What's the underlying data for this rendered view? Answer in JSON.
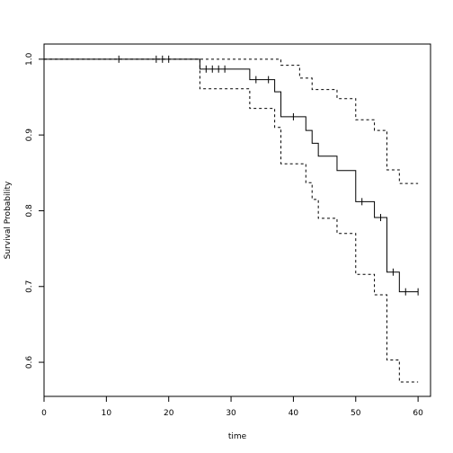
{
  "chart_data": {
    "type": "line",
    "title": "",
    "xlabel": "time",
    "ylabel": "Survival Probability",
    "xlim": [
      0,
      62
    ],
    "ylim": [
      0.555,
      1.02
    ],
    "xticks": [
      0,
      10,
      20,
      30,
      40,
      50,
      60
    ],
    "yticks": [
      0.6,
      0.7,
      0.8,
      0.9,
      1.0
    ],
    "xtick_labels": [
      "0",
      "10",
      "20",
      "30",
      "40",
      "50",
      "60"
    ],
    "ytick_labels": [
      "0.6",
      "0.7",
      "0.8",
      "0.9",
      "1.0"
    ],
    "grid": false,
    "series": [
      {
        "role": "estimate",
        "style": "solid",
        "step_x": [
          0,
          25,
          33,
          37,
          38,
          42,
          43,
          44,
          47,
          50,
          53,
          55,
          57,
          60
        ],
        "step_y": [
          1.0,
          0.987,
          0.973,
          0.957,
          0.924,
          0.906,
          0.889,
          0.872,
          0.853,
          0.812,
          0.791,
          0.719,
          0.693,
          0.693
        ],
        "censor_x": [
          12,
          18,
          19,
          20,
          26,
          27,
          28,
          29,
          34,
          36,
          40,
          51,
          54,
          56,
          58,
          60
        ],
        "censor_y": [
          1.0,
          1.0,
          1.0,
          1.0,
          0.987,
          0.987,
          0.987,
          0.987,
          0.973,
          0.973,
          0.924,
          0.812,
          0.791,
          0.719,
          0.693,
          0.693
        ]
      },
      {
        "role": "upper-confidence",
        "style": "dashed",
        "step_x": [
          0,
          38,
          41,
          43,
          44,
          47,
          50,
          53,
          55,
          57,
          60
        ],
        "step_y": [
          1.0,
          0.992,
          0.975,
          0.96,
          0.96,
          0.948,
          0.92,
          0.906,
          0.854,
          0.836,
          0.836
        ]
      },
      {
        "role": "lower-confidence",
        "style": "dashed",
        "step_x": [
          0,
          25,
          33,
          37,
          38,
          42,
          43,
          44,
          47,
          50,
          53,
          55,
          57,
          60
        ],
        "step_y": [
          1.0,
          0.961,
          0.935,
          0.91,
          0.862,
          0.837,
          0.815,
          0.79,
          0.77,
          0.716,
          0.689,
          0.603,
          0.574,
          0.574
        ]
      }
    ]
  }
}
